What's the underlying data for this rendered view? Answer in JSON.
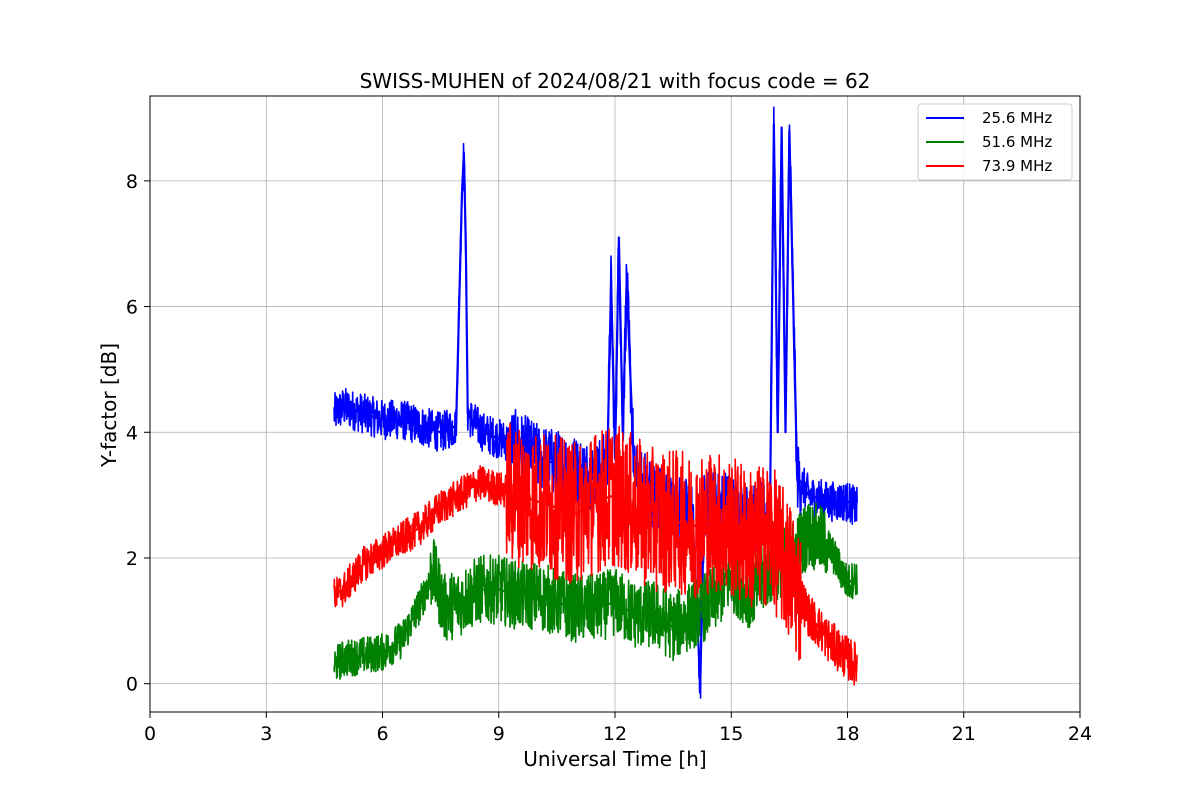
{
  "chart_data": {
    "type": "line",
    "title": "SWISS-MUHEN of 2024/08/21 with focus code = 62",
    "xlabel": "Universal Time [h]",
    "ylabel": "Y-factor [dB]",
    "xlim": [
      0,
      24
    ],
    "ylim": [
      -0.45,
      9.35
    ],
    "xticks": [
      0,
      3,
      6,
      9,
      12,
      15,
      18,
      21,
      24
    ],
    "yticks": [
      0,
      2,
      4,
      6,
      8
    ],
    "xtick_labels": [
      "0",
      "3",
      "6",
      "9",
      "12",
      "15",
      "18",
      "21",
      "24"
    ],
    "ytick_labels": [
      "0",
      "2",
      "4",
      "6",
      "8"
    ],
    "grid": true,
    "legend_position": "top-right",
    "series": [
      {
        "name": "25.6 MHz",
        "color": "#0000ff",
        "x": [
          4.75,
          5.0,
          5.5,
          6.0,
          6.5,
          7.0,
          7.5,
          7.9,
          8.05,
          8.1,
          8.15,
          8.2,
          8.3,
          8.6,
          9.0,
          9.5,
          10.0,
          10.5,
          11.0,
          11.5,
          11.8,
          11.9,
          12.0,
          12.1,
          12.2,
          12.3,
          12.5,
          13.0,
          13.5,
          14.0,
          14.2,
          14.3,
          14.5,
          15.0,
          15.5,
          16.0,
          16.1,
          16.2,
          16.3,
          16.4,
          16.5,
          16.7,
          17.0,
          17.5,
          18.0,
          18.25
        ],
        "y": [
          4.3,
          4.4,
          4.3,
          4.2,
          4.2,
          4.1,
          4.0,
          4.1,
          7.8,
          8.45,
          7.0,
          4.3,
          4.2,
          4.0,
          3.9,
          3.8,
          3.6,
          3.5,
          3.4,
          3.3,
          3.5,
          6.4,
          3.6,
          7.1,
          4.0,
          6.4,
          3.3,
          3.0,
          2.8,
          2.7,
          0.0,
          2.8,
          2.9,
          2.8,
          2.6,
          2.7,
          8.9,
          4.0,
          8.85,
          4.0,
          8.8,
          3.3,
          3.0,
          2.9,
          2.9,
          2.8
        ]
      },
      {
        "name": "51.6 MHz",
        "color": "#008000",
        "x": [
          4.75,
          5.0,
          5.5,
          6.0,
          6.5,
          7.0,
          7.3,
          7.6,
          8.0,
          8.5,
          9.0,
          9.5,
          10.0,
          10.5,
          11.0,
          11.5,
          12.0,
          12.5,
          13.0,
          13.5,
          14.0,
          14.5,
          15.0,
          15.5,
          16.0,
          16.5,
          17.0,
          17.5,
          18.0,
          18.25
        ],
        "y": [
          0.3,
          0.4,
          0.45,
          0.5,
          0.7,
          1.3,
          1.8,
          1.2,
          1.3,
          1.5,
          1.5,
          1.4,
          1.4,
          1.3,
          1.2,
          1.2,
          1.3,
          1.1,
          1.1,
          0.9,
          1.1,
          1.3,
          1.7,
          1.4,
          1.8,
          2.0,
          2.4,
          2.2,
          1.6,
          1.7
        ]
      },
      {
        "name": "73.9 MHz",
        "color": "#ff0000",
        "x": [
          4.75,
          5.0,
          5.5,
          6.0,
          6.5,
          7.0,
          7.5,
          8.0,
          8.5,
          9.0,
          9.5,
          10.0,
          10.5,
          11.0,
          11.5,
          12.0,
          12.5,
          13.0,
          13.5,
          14.0,
          14.5,
          15.0,
          15.5,
          16.0,
          16.5,
          17.0,
          17.5,
          18.0,
          18.25
        ],
        "y": [
          1.4,
          1.5,
          1.9,
          2.1,
          2.3,
          2.5,
          2.8,
          3.0,
          3.2,
          3.1,
          3.0,
          2.9,
          2.8,
          2.7,
          2.9,
          3.0,
          2.8,
          2.6,
          2.6,
          2.5,
          2.6,
          2.5,
          2.3,
          2.4,
          1.8,
          1.1,
          0.7,
          0.4,
          0.3
        ]
      }
    ]
  }
}
